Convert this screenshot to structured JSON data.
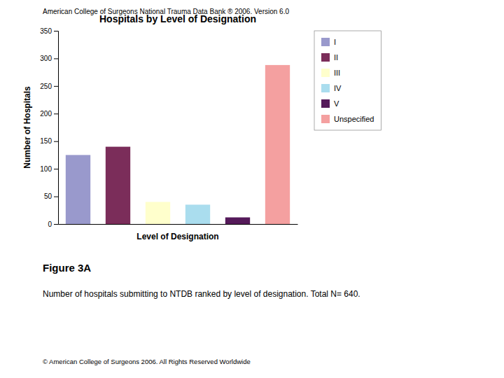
{
  "chart_data": {
    "type": "bar",
    "title": "Hospitals by Level of Designation",
    "xlabel": "Level of Designation",
    "ylabel": "Number of Hospitals",
    "categories": [
      "I",
      "II",
      "III",
      "IV",
      "V",
      "Unspecified"
    ],
    "values": [
      125,
      140,
      40,
      35,
      12,
      288
    ],
    "colors": [
      "#9999cc",
      "#7b2d5a",
      "#ffffcc",
      "#aaddee",
      "#551a5a",
      "#f4a0a0"
    ],
    "ylim": [
      0,
      350
    ],
    "yticks": [
      0,
      50,
      100,
      150,
      200,
      250,
      300,
      350
    ],
    "grid": false,
    "legend": "right",
    "tick_labels": "y",
    "annotations": [
      "American College of Surgeons National Trauma Data Bank ®  2006.  Version 6.0",
      "Figure 3A",
      "Number of hospitals submitting to NTDB ranked by level of designation.  Total N= 640.",
      "©  American College of Surgeons 2006.  All Rights Reserved Worldwide"
    ]
  }
}
